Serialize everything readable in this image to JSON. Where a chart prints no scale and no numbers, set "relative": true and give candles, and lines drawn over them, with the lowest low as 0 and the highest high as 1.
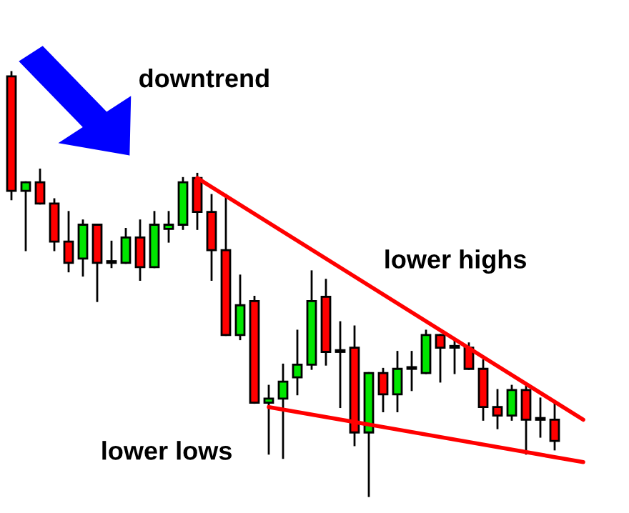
{
  "chart_data": {
    "type": "candlestick",
    "relative": true,
    "categories": [
      null,
      null,
      null,
      null,
      null,
      null,
      null,
      null,
      null,
      null,
      null,
      null,
      null,
      null,
      null,
      null,
      null,
      null,
      null,
      null,
      null,
      null,
      null,
      null,
      null,
      null,
      null,
      null,
      null,
      null,
      null,
      null,
      null,
      null,
      null,
      null,
      null,
      null,
      null,
      null,
      null
    ],
    "ohlc": [
      [
        0.99,
        1.0,
        0.7,
        0.72
      ],
      [
        0.72,
        0.74,
        0.58,
        0.74
      ],
      [
        0.74,
        0.77,
        0.69,
        0.69
      ],
      [
        0.69,
        0.7,
        0.58,
        0.6
      ],
      [
        0.6,
        0.67,
        0.53,
        0.55
      ],
      [
        0.56,
        0.65,
        0.52,
        0.64
      ],
      [
        0.64,
        0.64,
        0.46,
        0.55
      ],
      [
        0.55,
        0.6,
        0.54,
        0.55
      ],
      [
        0.55,
        0.63,
        0.55,
        0.61
      ],
      [
        0.61,
        0.65,
        0.51,
        0.54
      ],
      [
        0.54,
        0.67,
        0.54,
        0.64
      ],
      [
        0.63,
        0.67,
        0.6,
        0.64
      ],
      [
        0.64,
        0.75,
        0.63,
        0.74
      ],
      [
        0.75,
        0.76,
        0.63,
        0.67
      ],
      [
        0.67,
        0.71,
        0.51,
        0.58
      ],
      [
        0.58,
        0.71,
        0.38,
        0.38
      ],
      [
        0.38,
        0.52,
        0.37,
        0.45
      ],
      [
        0.46,
        0.47,
        0.22,
        0.22
      ],
      [
        0.22,
        0.26,
        0.1,
        0.23
      ],
      [
        0.23,
        0.31,
        0.09,
        0.27
      ],
      [
        0.28,
        0.39,
        0.24,
        0.31
      ],
      [
        0.31,
        0.53,
        0.3,
        0.46
      ],
      [
        0.47,
        0.51,
        0.31,
        0.34
      ],
      [
        0.34,
        0.41,
        0.21,
        0.34
      ],
      [
        0.35,
        0.4,
        0.12,
        0.15
      ],
      [
        0.15,
        0.29,
        0.0,
        0.29
      ],
      [
        0.29,
        0.3,
        0.2,
        0.24
      ],
      [
        0.24,
        0.34,
        0.2,
        0.3
      ],
      [
        0.3,
        0.34,
        0.25,
        0.3
      ],
      [
        0.29,
        0.39,
        0.29,
        0.38
      ],
      [
        0.38,
        0.38,
        0.27,
        0.35
      ],
      [
        0.35,
        0.37,
        0.29,
        0.35
      ],
      [
        0.35,
        0.36,
        0.3,
        0.3
      ],
      [
        0.3,
        0.32,
        0.18,
        0.21
      ],
      [
        0.21,
        0.25,
        0.16,
        0.19
      ],
      [
        0.19,
        0.26,
        0.18,
        0.25
      ],
      [
        0.25,
        0.26,
        0.1,
        0.18
      ],
      [
        0.18,
        0.23,
        0.14,
        0.18
      ],
      [
        0.18,
        0.22,
        0.11,
        0.13
      ],
      null,
      null
    ],
    "colors": [
      "#ff0000",
      "#00e600",
      "#ff0000",
      "#ff0000",
      "#ff0000",
      "#00e600",
      "#ff0000",
      "#ff0000",
      "#00e600",
      "#ff0000",
      "#00e600",
      "#00e600",
      "#00e600",
      "#ff0000",
      "#ff0000",
      "#ff0000",
      "#00e600",
      "#ff0000",
      "#00e600",
      "#00e600",
      "#00e600",
      "#00e600",
      "#ff0000",
      "#ff0000",
      "#ff0000",
      "#00e600",
      "#ff0000",
      "#00e600",
      "#ff0000",
      "#00e600",
      "#ff0000",
      "#ff0000",
      "#ff0000",
      "#ff0000",
      "#ff0000",
      "#00e600",
      "#ff0000",
      "#ff0000",
      "#ff0000",
      null,
      null
    ],
    "series": [
      {
        "type": "line",
        "color": "#ff0000",
        "values": [
          null,
          null,
          null,
          null,
          null,
          null,
          null,
          null,
          null,
          null,
          null,
          null,
          null,
          0.75,
          null,
          null,
          null,
          null,
          null,
          null,
          null,
          null,
          null,
          null,
          null,
          null,
          null,
          null,
          null,
          null,
          null,
          null,
          null,
          null,
          null,
          null,
          null,
          null,
          null,
          null,
          0.18
        ]
      },
      {
        "type": "line",
        "color": "#ff0000",
        "values": [
          null,
          null,
          null,
          null,
          null,
          null,
          null,
          null,
          null,
          null,
          null,
          null,
          null,
          null,
          null,
          null,
          null,
          null,
          0.21,
          null,
          null,
          null,
          null,
          null,
          null,
          null,
          null,
          null,
          null,
          null,
          null,
          null,
          null,
          null,
          null,
          null,
          null,
          null,
          null,
          null,
          0.08
        ]
      }
    ],
    "annotations": [
      "downtrend",
      "lower highs",
      "lower lows"
    ]
  }
}
